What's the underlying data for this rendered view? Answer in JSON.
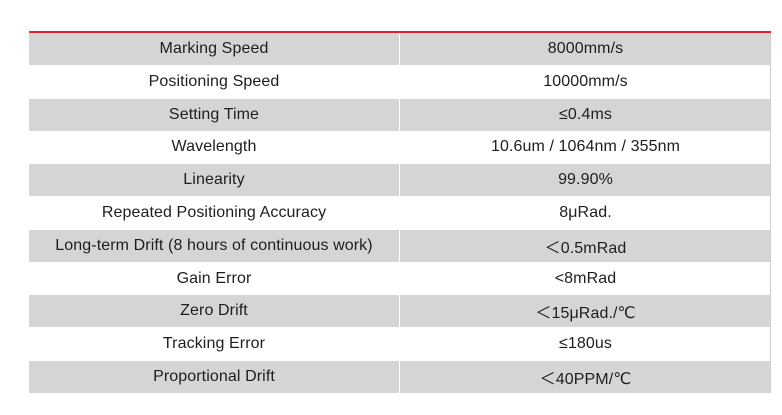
{
  "accent_color": "#e0202a",
  "row_shade_color": "#d5d5d5",
  "specs": [
    {
      "parameter": "Marking Speed",
      "value": "8000mm/s"
    },
    {
      "parameter": "Positioning Speed",
      "value": "10000mm/s"
    },
    {
      "parameter": "Setting Time",
      "value": "≤0.4ms"
    },
    {
      "parameter": "Wavelength",
      "value": "10.6um / 1064nm / 355nm"
    },
    {
      "parameter": "Linearity",
      "value": "99.90%"
    },
    {
      "parameter": "Repeated Positioning Accuracy",
      "value": "8μRad."
    },
    {
      "parameter": "Long-term Drift (8 hours of continuous work)",
      "value": "＜0.5mRad"
    },
    {
      "parameter": "Gain Error",
      "value": "<8mRad"
    },
    {
      "parameter": "Zero Drift",
      "value": "＜15μRad./℃"
    },
    {
      "parameter": "Tracking Error",
      "value": "≤180us"
    },
    {
      "parameter": "Proportional Drift",
      "value": "＜40PPM/℃"
    }
  ]
}
